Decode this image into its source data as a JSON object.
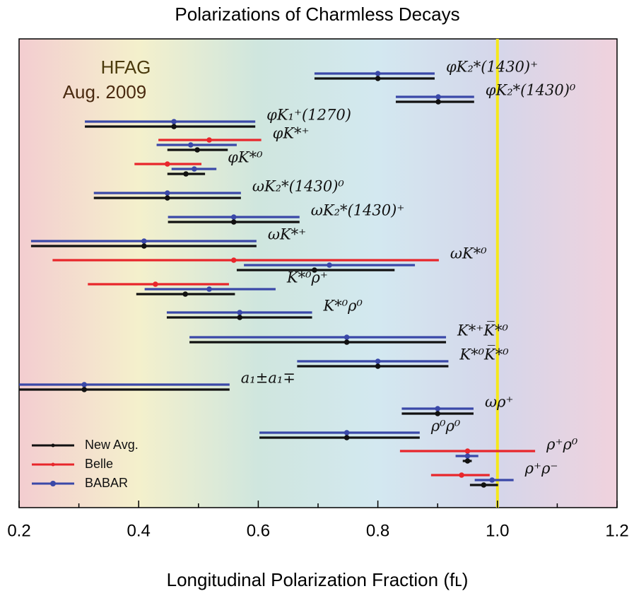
{
  "chart_data": {
    "type": "errorbar",
    "title": "Polarizations of Charmless Decays",
    "xlabel": "Longitudinal Polarization Fraction (fʟ)",
    "annotations": [
      "HFAG",
      "Aug. 2009"
    ],
    "xlim": [
      0.2,
      1.2
    ],
    "xticks": [
      0.2,
      0.4,
      0.6,
      0.8,
      {
        "value": 1,
        "label": "1.0"
      },
      1.2
    ],
    "xminorticks": [
      0.3,
      0.5,
      0.7,
      0.9,
      1.1
    ],
    "reference_line": 1,
    "reference_color": "#f5e81c",
    "categories": [
      "φK₂*(1430)⁺",
      "φK₂*(1430)⁰",
      "φK₁⁺(1270)",
      "φK*⁺",
      "φK*⁰",
      "ωK₂*(1430)⁰",
      "ωK₂*(1430)⁺",
      "ωK*⁺",
      "ωK*⁰",
      "K*⁰ρ⁺",
      "K*⁰ρ⁰",
      "K*⁺K̅*⁰",
      "K*⁰K̅*⁰",
      "a₁±a₁∓",
      "ωρ⁺",
      "ρ⁰ρ⁰",
      "ρ⁺ρ⁰",
      "ρ⁺ρ⁻"
    ],
    "series": [
      {
        "name": "New Avg.",
        "color": "#111111",
        "values": [
          0.8,
          0.901,
          0.459,
          0.498,
          0.479,
          0.448,
          0.559,
          0.409,
          0.694,
          0.478,
          0.569,
          0.748,
          0.8,
          0.309,
          0.9,
          0.748,
          0.95,
          0.977
        ],
        "low": [
          0.694,
          0.83,
          0.31,
          0.448,
          0.448,
          0.325,
          0.449,
          0.22,
          0.564,
          0.396,
          0.447,
          0.485,
          0.665,
          0.2,
          0.84,
          0.602,
          0.942,
          0.954
        ],
        "high": [
          0.895,
          0.961,
          0.595,
          0.549,
          0.511,
          0.571,
          0.669,
          0.597,
          0.828,
          0.561,
          0.69,
          0.914,
          0.918,
          0.552,
          0.96,
          0.87,
          0.957,
          1.001
        ]
      },
      {
        "name": "Belle",
        "color": "#e8262b",
        "values": [
          null,
          null,
          null,
          0.518,
          0.448,
          null,
          null,
          null,
          0.559,
          0.428,
          null,
          null,
          null,
          null,
          null,
          null,
          0.95,
          0.94
        ],
        "low": [
          null,
          null,
          null,
          0.433,
          0.393,
          null,
          null,
          null,
          0.256,
          0.315,
          null,
          null,
          null,
          null,
          null,
          null,
          0.837,
          0.889
        ],
        "high": [
          null,
          null,
          null,
          0.605,
          0.505,
          null,
          null,
          null,
          0.902,
          0.551,
          null,
          null,
          null,
          null,
          null,
          null,
          1.063,
          0.987
        ]
      },
      {
        "name": "BABAR",
        "color": "#3a48a8",
        "values": [
          0.8,
          0.901,
          0.459,
          0.487,
          0.493,
          0.448,
          0.559,
          0.409,
          0.719,
          0.518,
          0.569,
          0.748,
          0.8,
          0.309,
          0.9,
          0.748,
          0.95,
          0.991
        ],
        "low": [
          0.694,
          0.83,
          0.31,
          0.43,
          0.455,
          0.325,
          0.449,
          0.22,
          0.576,
          0.41,
          0.447,
          0.485,
          0.665,
          0.2,
          0.84,
          0.602,
          0.93,
          0.962
        ],
        "high": [
          0.895,
          0.961,
          0.595,
          0.564,
          0.53,
          0.571,
          0.669,
          0.597,
          0.862,
          0.629,
          0.69,
          0.914,
          0.918,
          0.552,
          0.96,
          0.87,
          0.968,
          1.027
        ]
      }
    ]
  }
}
